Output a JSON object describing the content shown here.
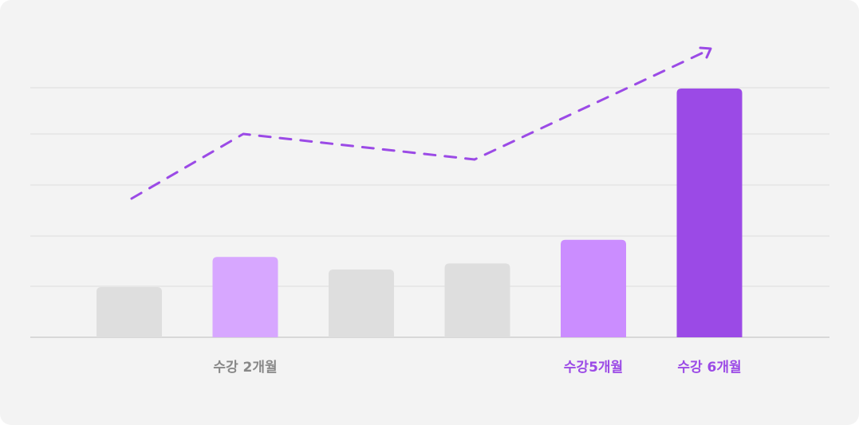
{
  "chart_data": {
    "type": "bar",
    "title": "",
    "xlabel": "",
    "ylabel": "",
    "grid": true,
    "ylim": [
      0,
      5
    ],
    "categories": [
      "",
      "수강 2개월",
      "",
      "",
      "수강5개월",
      "수강 6개월"
    ],
    "values": [
      1.0,
      1.6,
      1.35,
      1.47,
      1.94,
      4.95
    ],
    "bar_colors": [
      "#dedede",
      "#d7a7ff",
      "#dedede",
      "#dedede",
      "#cb8dff",
      "#9b4ae6"
    ],
    "label_colors": [
      "#888888",
      "#888888",
      "#888888",
      "#888888",
      "#9b4ae6",
      "#9b4ae6"
    ],
    "trend": {
      "style": "dashed-arrow",
      "color": "#9b4ae6",
      "values": [
        2.7,
        3.98,
        3.5,
        5.65
      ]
    }
  }
}
